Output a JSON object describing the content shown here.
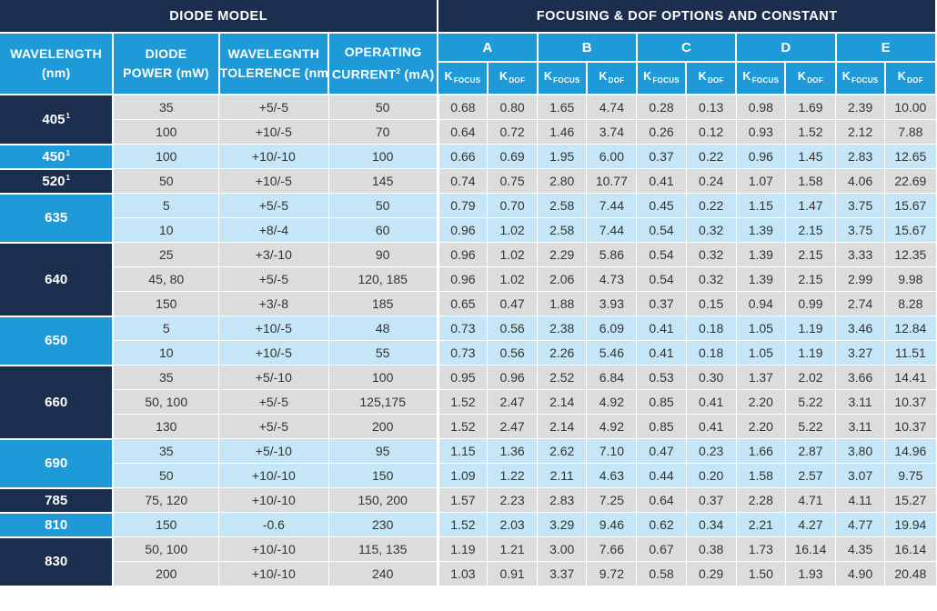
{
  "header": {
    "diode_model": "DIODE MODEL",
    "focusing": "FOCUSING & DOF OPTIONS AND CONSTANT",
    "wavelength": [
      "WAVELENGTH",
      "(nm)"
    ],
    "diode_power": [
      "DIODE",
      "POWER (mW)"
    ],
    "tolerance": [
      "WAVELEGNTH",
      "TOLERENCE (nm)"
    ],
    "current": [
      "OPERATING",
      "CURRENT",
      "2",
      " (mA)"
    ],
    "options": [
      "A",
      "B",
      "C",
      "D",
      "E"
    ],
    "k_focus": [
      "K",
      "FOCUS"
    ],
    "k_dof": [
      "K",
      "DOF"
    ]
  },
  "groups": [
    {
      "wavelength": "405",
      "sup": "1",
      "rows": [
        {
          "power": "35",
          "tol": "+5/-5",
          "current": "50",
          "k": [
            "0.68",
            "0.80",
            "1.65",
            "4.74",
            "0.28",
            "0.13",
            "0.98",
            "1.69",
            "2.39",
            "10.00"
          ]
        },
        {
          "power": "100",
          "tol": "+10/-5",
          "current": "70",
          "k": [
            "0.64",
            "0.72",
            "1.46",
            "3.74",
            "0.26",
            "0.12",
            "0.93",
            "1.52",
            "2.12",
            "7.88"
          ]
        }
      ]
    },
    {
      "wavelength": "450",
      "sup": "1",
      "rows": [
        {
          "power": "100",
          "tol": "+10/-10",
          "current": "100",
          "k": [
            "0.66",
            "0.69",
            "1.95",
            "6.00",
            "0.37",
            "0.22",
            "0.96",
            "1.45",
            "2.83",
            "12.65"
          ]
        }
      ]
    },
    {
      "wavelength": "520",
      "sup": "1",
      "rows": [
        {
          "power": "50",
          "tol": "+10/-5",
          "current": "145",
          "k": [
            "0.74",
            "0.75",
            "2.80",
            "10.77",
            "0.41",
            "0.24",
            "1.07",
            "1.58",
            "4.06",
            "22.69"
          ]
        }
      ]
    },
    {
      "wavelength": "635",
      "sup": "",
      "rows": [
        {
          "power": "5",
          "tol": "+5/-5",
          "current": "50",
          "k": [
            "0.79",
            "0.70",
            "2.58",
            "7.44",
            "0.45",
            "0.22",
            "1.15",
            "1.47",
            "3.75",
            "15.67"
          ]
        },
        {
          "power": "10",
          "tol": "+8/-4",
          "current": "60",
          "k": [
            "0.96",
            "1.02",
            "2.58",
            "7.44",
            "0.54",
            "0.32",
            "1.39",
            "2.15",
            "3.75",
            "15.67"
          ]
        }
      ]
    },
    {
      "wavelength": "640",
      "sup": "",
      "rows": [
        {
          "power": "25",
          "tol": "+3/-10",
          "current": "90",
          "k": [
            "0.96",
            "1.02",
            "2.29",
            "5.86",
            "0.54",
            "0.32",
            "1.39",
            "2.15",
            "3.33",
            "12.35"
          ]
        },
        {
          "power": "45, 80",
          "tol": "+5/-5",
          "current": "120, 185",
          "k": [
            "0.96",
            "1.02",
            "2.06",
            "4.73",
            "0.54",
            "0.32",
            "1.39",
            "2.15",
            "2.99",
            "9.98"
          ]
        },
        {
          "power": "150",
          "tol": "+3/-8",
          "current": "185",
          "k": [
            "0.65",
            "0.47",
            "1.88",
            "3.93",
            "0.37",
            "0.15",
            "0.94",
            "0.99",
            "2.74",
            "8.28"
          ]
        }
      ]
    },
    {
      "wavelength": "650",
      "sup": "",
      "rows": [
        {
          "power": "5",
          "tol": "+10/-5",
          "current": "48",
          "k": [
            "0.73",
            "0.56",
            "2.38",
            "6.09",
            "0.41",
            "0.18",
            "1.05",
            "1.19",
            "3.46",
            "12.84"
          ]
        },
        {
          "power": "10",
          "tol": "+10/-5",
          "current": "55",
          "k": [
            "0.73",
            "0.56",
            "2.26",
            "5.46",
            "0.41",
            "0.18",
            "1.05",
            "1.19",
            "3.27",
            "11.51"
          ]
        }
      ]
    },
    {
      "wavelength": "660",
      "sup": "",
      "rows": [
        {
          "power": "35",
          "tol": "+5/-10",
          "current": "100",
          "k": [
            "0.95",
            "0.96",
            "2.52",
            "6.84",
            "0.53",
            "0.30",
            "1.37",
            "2.02",
            "3.66",
            "14.41"
          ]
        },
        {
          "power": "50, 100",
          "tol": "+5/-5",
          "current": "125,175",
          "k": [
            "1.52",
            "2.47",
            "2.14",
            "4.92",
            "0.85",
            "0.41",
            "2.20",
            "5.22",
            "3.11",
            "10.37"
          ]
        },
        {
          "power": "130",
          "tol": "+5/-5",
          "current": "200",
          "k": [
            "1.52",
            "2.47",
            "2.14",
            "4.92",
            "0.85",
            "0.41",
            "2.20",
            "5.22",
            "3.11",
            "10.37"
          ]
        }
      ]
    },
    {
      "wavelength": "690",
      "sup": "",
      "rows": [
        {
          "power": "35",
          "tol": "+5/-10",
          "current": "95",
          "k": [
            "1.15",
            "1.36",
            "2.62",
            "7.10",
            "0.47",
            "0.23",
            "1.66",
            "2.87",
            "3.80",
            "14.96"
          ]
        },
        {
          "power": "50",
          "tol": "+10/-10",
          "current": "150",
          "k": [
            "1.09",
            "1.22",
            "2.11",
            "4.63",
            "0.44",
            "0.20",
            "1.58",
            "2.57",
            "3.07",
            "9.75"
          ]
        }
      ]
    },
    {
      "wavelength": "785",
      "sup": "",
      "rows": [
        {
          "power": "75, 120",
          "tol": "+10/-10",
          "current": "150, 200",
          "k": [
            "1.57",
            "2.23",
            "2.83",
            "7.25",
            "0.64",
            "0.37",
            "2.28",
            "4.71",
            "4.11",
            "15.27"
          ]
        }
      ]
    },
    {
      "wavelength": "810",
      "sup": "",
      "rows": [
        {
          "power": "150",
          "tol": "-0.6",
          "current": "230",
          "k": [
            "1.52",
            "2.03",
            "3.29",
            "9.46",
            "0.62",
            "0.34",
            "2.21",
            "4.27",
            "4.77",
            "19.94"
          ]
        }
      ]
    },
    {
      "wavelength": "830",
      "sup": "",
      "rows": [
        {
          "power": "50, 100",
          "tol": "+10/-10",
          "current": "115, 135",
          "k": [
            "1.19",
            "1.21",
            "3.00",
            "7.66",
            "0.67",
            "0.38",
            "1.73",
            "16.14",
            "4.35",
            "16.14"
          ]
        },
        {
          "power": "200",
          "tol": "+10/-10",
          "current": "240",
          "k": [
            "1.03",
            "0.91",
            "3.37",
            "9.72",
            "0.58",
            "0.29",
            "1.50",
            "1.93",
            "4.90",
            "20.48"
          ]
        }
      ]
    }
  ],
  "colors": {
    "dark": "#1c2e4d",
    "blue": "#1e9ad8",
    "band_gray": "#dbdcdd",
    "band_blue": "#c4e6f6"
  }
}
